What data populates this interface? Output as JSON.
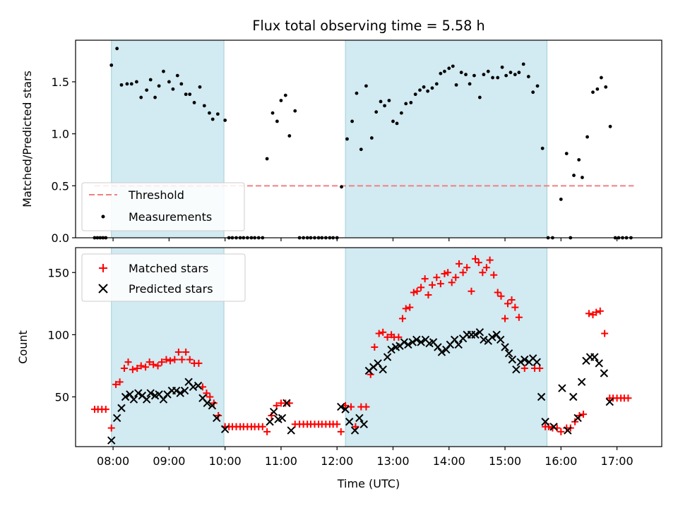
{
  "chart_data": {
    "title": "Flux total observing time = 5.58 h",
    "xlabel": "Time (UTC)",
    "xlim": [
      7.33,
      17.8
    ],
    "xticks": [
      {
        "v": 8,
        "label": "08:00"
      },
      {
        "v": 9,
        "label": "09:00"
      },
      {
        "v": 10,
        "label": "10:00"
      },
      {
        "v": 11,
        "label": "11:00"
      },
      {
        "v": 12,
        "label": "12:00"
      },
      {
        "v": 13,
        "label": "13:00"
      },
      {
        "v": 14,
        "label": "14:00"
      },
      {
        "v": 15,
        "label": "15:00"
      },
      {
        "v": 16,
        "label": "16:00"
      },
      {
        "v": 17,
        "label": "17:00"
      }
    ],
    "shaded_intervals": [
      [
        7.97,
        9.98
      ],
      [
        12.15,
        15.75
      ]
    ],
    "shade_color": "#add8e6",
    "top": {
      "type": "scatter",
      "ylabel": "Matched/Predicted stars",
      "ylim": [
        0,
        1.9
      ],
      "yticks": [
        "0.0",
        "0.5",
        "1.0",
        "1.5"
      ],
      "threshold": {
        "value": 0.5,
        "x_range": [
          7.67,
          17.3
        ],
        "color": "#f08080",
        "label": "Threshold"
      },
      "measurements_label": "Measurements",
      "points": [
        [
          7.67,
          0
        ],
        [
          7.72,
          0
        ],
        [
          7.77,
          0
        ],
        [
          7.82,
          0
        ],
        [
          7.87,
          0
        ],
        [
          7.97,
          1.66
        ],
        [
          8.07,
          1.82
        ],
        [
          8.15,
          1.47
        ],
        [
          8.25,
          1.48
        ],
        [
          8.33,
          1.48
        ],
        [
          8.42,
          1.5
        ],
        [
          8.5,
          1.35
        ],
        [
          8.6,
          1.42
        ],
        [
          8.67,
          1.52
        ],
        [
          8.75,
          1.35
        ],
        [
          8.82,
          1.46
        ],
        [
          8.9,
          1.6
        ],
        [
          9.0,
          1.5
        ],
        [
          9.07,
          1.43
        ],
        [
          9.15,
          1.56
        ],
        [
          9.22,
          1.48
        ],
        [
          9.3,
          1.38
        ],
        [
          9.37,
          1.38
        ],
        [
          9.45,
          1.3
        ],
        [
          9.55,
          1.45
        ],
        [
          9.63,
          1.27
        ],
        [
          9.72,
          1.2
        ],
        [
          9.78,
          1.14
        ],
        [
          9.87,
          1.19
        ],
        [
          10.0,
          1.13
        ],
        [
          10.07,
          0
        ],
        [
          10.13,
          0
        ],
        [
          10.2,
          0
        ],
        [
          10.27,
          0
        ],
        [
          10.33,
          0
        ],
        [
          10.4,
          0
        ],
        [
          10.47,
          0
        ],
        [
          10.53,
          0
        ],
        [
          10.6,
          0
        ],
        [
          10.67,
          0
        ],
        [
          10.75,
          0.76
        ],
        [
          10.85,
          1.2
        ],
        [
          10.93,
          1.12
        ],
        [
          11.0,
          1.32
        ],
        [
          11.08,
          1.37
        ],
        [
          11.15,
          0.98
        ],
        [
          11.25,
          1.22
        ],
        [
          11.33,
          0
        ],
        [
          11.4,
          0
        ],
        [
          11.47,
          0
        ],
        [
          11.53,
          0
        ],
        [
          11.6,
          0
        ],
        [
          11.67,
          0
        ],
        [
          11.73,
          0
        ],
        [
          11.8,
          0
        ],
        [
          11.87,
          0
        ],
        [
          11.93,
          0
        ],
        [
          12.0,
          0
        ],
        [
          12.08,
          0.49
        ],
        [
          12.18,
          0.95
        ],
        [
          12.27,
          1.12
        ],
        [
          12.35,
          1.39
        ],
        [
          12.43,
          0.85
        ],
        [
          12.52,
          1.46
        ],
        [
          12.62,
          0.96
        ],
        [
          12.7,
          1.21
        ],
        [
          12.78,
          1.31
        ],
        [
          12.85,
          1.27
        ],
        [
          12.93,
          1.32
        ],
        [
          13.0,
          1.12
        ],
        [
          13.07,
          1.1
        ],
        [
          13.15,
          1.2
        ],
        [
          13.23,
          1.29
        ],
        [
          13.32,
          1.3
        ],
        [
          13.4,
          1.38
        ],
        [
          13.48,
          1.42
        ],
        [
          13.55,
          1.45
        ],
        [
          13.62,
          1.41
        ],
        [
          13.7,
          1.44
        ],
        [
          13.78,
          1.48
        ],
        [
          13.85,
          1.58
        ],
        [
          13.92,
          1.6
        ],
        [
          14.0,
          1.63
        ],
        [
          14.07,
          1.65
        ],
        [
          14.13,
          1.47
        ],
        [
          14.22,
          1.59
        ],
        [
          14.3,
          1.57
        ],
        [
          14.37,
          1.48
        ],
        [
          14.45,
          1.56
        ],
        [
          14.55,
          1.35
        ],
        [
          14.62,
          1.57
        ],
        [
          14.7,
          1.6
        ],
        [
          14.78,
          1.54
        ],
        [
          14.87,
          1.54
        ],
        [
          14.95,
          1.64
        ],
        [
          15.02,
          1.56
        ],
        [
          15.1,
          1.59
        ],
        [
          15.18,
          1.57
        ],
        [
          15.25,
          1.59
        ],
        [
          15.33,
          1.67
        ],
        [
          15.42,
          1.55
        ],
        [
          15.5,
          1.4
        ],
        [
          15.58,
          1.46
        ],
        [
          15.67,
          0.86
        ],
        [
          15.77,
          0
        ],
        [
          15.85,
          0
        ],
        [
          16.0,
          0.37
        ],
        [
          16.1,
          0.81
        ],
        [
          16.17,
          0
        ],
        [
          16.23,
          0.6
        ],
        [
          16.32,
          0.75
        ],
        [
          16.38,
          0.58
        ],
        [
          16.47,
          0.97
        ],
        [
          16.57,
          1.4
        ],
        [
          16.65,
          1.43
        ],
        [
          16.72,
          1.54
        ],
        [
          16.8,
          1.45
        ],
        [
          16.88,
          1.07
        ],
        [
          16.97,
          0
        ],
        [
          17.03,
          0
        ],
        [
          17.1,
          0
        ],
        [
          17.17,
          0
        ],
        [
          17.25,
          0
        ]
      ]
    },
    "bottom": {
      "type": "scatter",
      "ylabel": "Count",
      "ylim": [
        10,
        170
      ],
      "yticks": [
        "50",
        "100",
        "150"
      ],
      "matched_label": "Matched stars",
      "predicted_label": "Predicted stars",
      "matched_color": "#ff0000",
      "predicted_color": "#000000",
      "matched": [
        [
          7.67,
          40
        ],
        [
          7.73,
          40
        ],
        [
          7.8,
          40
        ],
        [
          7.87,
          40
        ],
        [
          7.97,
          25
        ],
        [
          8.05,
          60
        ],
        [
          8.12,
          62
        ],
        [
          8.2,
          73
        ],
        [
          8.27,
          78
        ],
        [
          8.35,
          72
        ],
        [
          8.43,
          73
        ],
        [
          8.5,
          75
        ],
        [
          8.58,
          74
        ],
        [
          8.65,
          78
        ],
        [
          8.72,
          76
        ],
        [
          8.8,
          75
        ],
        [
          8.87,
          78
        ],
        [
          8.95,
          80
        ],
        [
          9.02,
          79
        ],
        [
          9.1,
          80
        ],
        [
          9.17,
          86
        ],
        [
          9.23,
          80
        ],
        [
          9.3,
          86
        ],
        [
          9.37,
          80
        ],
        [
          9.45,
          77
        ],
        [
          9.53,
          77
        ],
        [
          9.6,
          58
        ],
        [
          9.67,
          53
        ],
        [
          9.73,
          50
        ],
        [
          9.8,
          45
        ],
        [
          9.88,
          35
        ],
        [
          10.0,
          26
        ],
        [
          10.07,
          26
        ],
        [
          10.13,
          26
        ],
        [
          10.2,
          26
        ],
        [
          10.27,
          26
        ],
        [
          10.33,
          26
        ],
        [
          10.4,
          26
        ],
        [
          10.47,
          26
        ],
        [
          10.53,
          26
        ],
        [
          10.6,
          26
        ],
        [
          10.67,
          26
        ],
        [
          10.75,
          22
        ],
        [
          10.83,
          35
        ],
        [
          10.92,
          43
        ],
        [
          11.0,
          45
        ],
        [
          11.08,
          45
        ],
        [
          11.15,
          45
        ],
        [
          11.25,
          28
        ],
        [
          11.33,
          28
        ],
        [
          11.4,
          28
        ],
        [
          11.47,
          28
        ],
        [
          11.53,
          28
        ],
        [
          11.6,
          28
        ],
        [
          11.67,
          28
        ],
        [
          11.73,
          28
        ],
        [
          11.8,
          28
        ],
        [
          11.87,
          28
        ],
        [
          11.93,
          28
        ],
        [
          12.0,
          28
        ],
        [
          12.07,
          22
        ],
        [
          12.15,
          43
        ],
        [
          12.25,
          42
        ],
        [
          12.33,
          26
        ],
        [
          12.43,
          42
        ],
        [
          12.52,
          42
        ],
        [
          12.6,
          68
        ],
        [
          12.67,
          90
        ],
        [
          12.75,
          101
        ],
        [
          12.82,
          102
        ],
        [
          12.9,
          98
        ],
        [
          12.97,
          100
        ],
        [
          13.02,
          98
        ],
        [
          13.1,
          98
        ],
        [
          13.17,
          113
        ],
        [
          13.23,
          121
        ],
        [
          13.3,
          122
        ],
        [
          13.37,
          134
        ],
        [
          13.43,
          135
        ],
        [
          13.5,
          138
        ],
        [
          13.57,
          145
        ],
        [
          13.63,
          132
        ],
        [
          13.7,
          140
        ],
        [
          13.78,
          146
        ],
        [
          13.85,
          141
        ],
        [
          13.92,
          149
        ],
        [
          13.98,
          150
        ],
        [
          14.05,
          142
        ],
        [
          14.12,
          146
        ],
        [
          14.18,
          157
        ],
        [
          14.25,
          150
        ],
        [
          14.32,
          154
        ],
        [
          14.4,
          135
        ],
        [
          14.47,
          161
        ],
        [
          14.53,
          158
        ],
        [
          14.6,
          150
        ],
        [
          14.67,
          154
        ],
        [
          14.73,
          160
        ],
        [
          14.8,
          148
        ],
        [
          14.87,
          134
        ],
        [
          14.93,
          131
        ],
        [
          15.0,
          113
        ],
        [
          15.05,
          125
        ],
        [
          15.12,
          128
        ],
        [
          15.18,
          122
        ],
        [
          15.25,
          114
        ],
        [
          15.35,
          73
        ],
        [
          15.53,
          73
        ],
        [
          15.62,
          73
        ],
        [
          15.72,
          26
        ],
        [
          15.78,
          26
        ],
        [
          15.85,
          25
        ],
        [
          15.93,
          25
        ],
        [
          16.0,
          22
        ],
        [
          16.1,
          25
        ],
        [
          16.17,
          25
        ],
        [
          16.25,
          30
        ],
        [
          16.33,
          35
        ],
        [
          16.4,
          36
        ],
        [
          16.5,
          117
        ],
        [
          16.57,
          116
        ],
        [
          16.63,
          118
        ],
        [
          16.7,
          119
        ],
        [
          16.78,
          101
        ],
        [
          16.87,
          49
        ],
        [
          16.93,
          49
        ],
        [
          17.0,
          49
        ],
        [
          17.07,
          49
        ],
        [
          17.13,
          49
        ],
        [
          17.2,
          49
        ]
      ],
      "predicted": [
        [
          7.97,
          15
        ],
        [
          8.07,
          33
        ],
        [
          8.15,
          41
        ],
        [
          8.22,
          50
        ],
        [
          8.3,
          52
        ],
        [
          8.37,
          48
        ],
        [
          8.45,
          53
        ],
        [
          8.52,
          51
        ],
        [
          8.6,
          48
        ],
        [
          8.67,
          53
        ],
        [
          8.75,
          51
        ],
        [
          8.82,
          52
        ],
        [
          8.9,
          48
        ],
        [
          8.97,
          52
        ],
        [
          9.05,
          55
        ],
        [
          9.13,
          55
        ],
        [
          9.2,
          53
        ],
        [
          9.28,
          55
        ],
        [
          9.35,
          62
        ],
        [
          9.43,
          58
        ],
        [
          9.52,
          59
        ],
        [
          9.6,
          49
        ],
        [
          9.68,
          45
        ],
        [
          9.77,
          43
        ],
        [
          9.85,
          33
        ],
        [
          10.0,
          24
        ],
        [
          10.8,
          30
        ],
        [
          10.87,
          38
        ],
        [
          10.95,
          32
        ],
        [
          11.02,
          33
        ],
        [
          11.1,
          45
        ],
        [
          11.18,
          23
        ],
        [
          12.07,
          42
        ],
        [
          12.15,
          40
        ],
        [
          12.22,
          30
        ],
        [
          12.32,
          23
        ],
        [
          12.4,
          33
        ],
        [
          12.48,
          28
        ],
        [
          12.57,
          71
        ],
        [
          12.65,
          74
        ],
        [
          12.73,
          77
        ],
        [
          12.82,
          72
        ],
        [
          12.9,
          82
        ],
        [
          12.97,
          88
        ],
        [
          13.05,
          90
        ],
        [
          13.12,
          91
        ],
        [
          13.2,
          94
        ],
        [
          13.27,
          92
        ],
        [
          13.35,
          94
        ],
        [
          13.42,
          96
        ],
        [
          13.5,
          94
        ],
        [
          13.58,
          96
        ],
        [
          13.65,
          93
        ],
        [
          13.72,
          94
        ],
        [
          13.8,
          90
        ],
        [
          13.87,
          86
        ],
        [
          13.95,
          88
        ],
        [
          14.02,
          92
        ],
        [
          14.1,
          96
        ],
        [
          14.17,
          92
        ],
        [
          14.25,
          97
        ],
        [
          14.32,
          100
        ],
        [
          14.4,
          100
        ],
        [
          14.47,
          100
        ],
        [
          14.55,
          102
        ],
        [
          14.62,
          96
        ],
        [
          14.7,
          95
        ],
        [
          14.77,
          98
        ],
        [
          14.85,
          100
        ],
        [
          14.92,
          96
        ],
        [
          15.0,
          90
        ],
        [
          15.07,
          85
        ],
        [
          15.13,
          80
        ],
        [
          15.2,
          72
        ],
        [
          15.28,
          78
        ],
        [
          15.35,
          80
        ],
        [
          15.43,
          78
        ],
        [
          15.5,
          81
        ],
        [
          15.57,
          78
        ],
        [
          15.65,
          50
        ],
        [
          15.72,
          30
        ],
        [
          15.87,
          26
        ],
        [
          16.02,
          57
        ],
        [
          16.12,
          23
        ],
        [
          16.22,
          50
        ],
        [
          16.3,
          33
        ],
        [
          16.37,
          62
        ],
        [
          16.45,
          79
        ],
        [
          16.52,
          82
        ],
        [
          16.6,
          82
        ],
        [
          16.68,
          77
        ],
        [
          16.77,
          69
        ],
        [
          16.87,
          46
        ]
      ]
    }
  }
}
